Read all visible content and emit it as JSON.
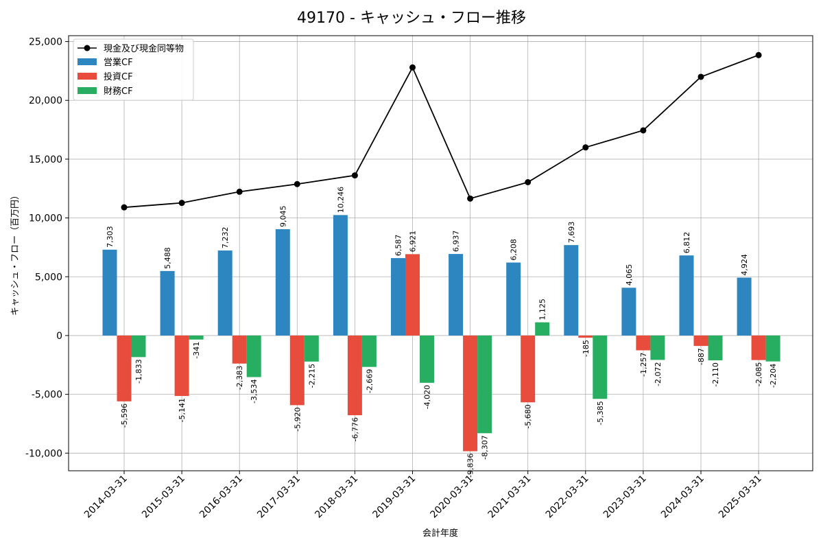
{
  "chart_data": {
    "type": "bar",
    "title": "49170 - キャッシュ・フロー推移",
    "xlabel": "会計年度",
    "ylabel": "キャッシュ・フロー（百万円）",
    "ylim": [
      -11500,
      25500
    ],
    "yticks": [
      -10000,
      -5000,
      0,
      5000,
      10000,
      15000,
      20000,
      25000
    ],
    "ytick_labels": [
      "-10,000",
      "-5,000",
      "0",
      "5,000",
      "10,000",
      "15,000",
      "20,000",
      "25,000"
    ],
    "grid": true,
    "legend_position": "top-left",
    "categories": [
      "2014-03-31",
      "2015-03-31",
      "2016-03-31",
      "2017-03-31",
      "2018-03-31",
      "2019-03-31",
      "2020-03-31",
      "2021-03-31",
      "2022-03-31",
      "2023-03-31",
      "2024-03-31",
      "2025-03-31"
    ],
    "series": [
      {
        "name": "営業CF",
        "kind": "bar",
        "color": "#2e86c1",
        "values": [
          7303,
          5488,
          7232,
          9045,
          10246,
          6587,
          6937,
          6208,
          7693,
          4065,
          6812,
          4924
        ],
        "labels": [
          "7,303",
          "5,488",
          "7,232",
          "9,045",
          "10,246",
          "6,587",
          "6,937",
          "6,208",
          "7,693",
          "4,065",
          "6,812",
          "4,924"
        ]
      },
      {
        "name": "投資CF",
        "kind": "bar",
        "color": "#e74c3c",
        "values": [
          -5596,
          -5141,
          -2383,
          -5920,
          -6776,
          6921,
          -9836,
          -5680,
          -185,
          -1257,
          -887,
          -2085
        ],
        "labels": [
          "-5,596",
          "-5,141",
          "-2,383",
          "-5,920",
          "-6,776",
          "6,921",
          "-9,836",
          "-5,680",
          "-185",
          "-1,257",
          "-887",
          "-2,085"
        ]
      },
      {
        "name": "財務CF",
        "kind": "bar",
        "color": "#27ae60",
        "values": [
          -1833,
          -341,
          -3534,
          -2215,
          -2669,
          -4020,
          -8307,
          1125,
          -5385,
          -2072,
          -2110,
          -2204
        ],
        "labels": [
          "-1,833",
          "-341",
          "-3,534",
          "-2,215",
          "-2,669",
          "-4,020",
          "-8,307",
          "1,125",
          "-5,385",
          "-2,072",
          "-2,110",
          "-2,204"
        ]
      },
      {
        "name": "現金及び現金同等物",
        "kind": "line",
        "color": "#000000",
        "values": [
          10900,
          11280,
          12230,
          12880,
          13620,
          22800,
          11650,
          13040,
          16000,
          17450,
          22000,
          23850
        ]
      }
    ]
  }
}
